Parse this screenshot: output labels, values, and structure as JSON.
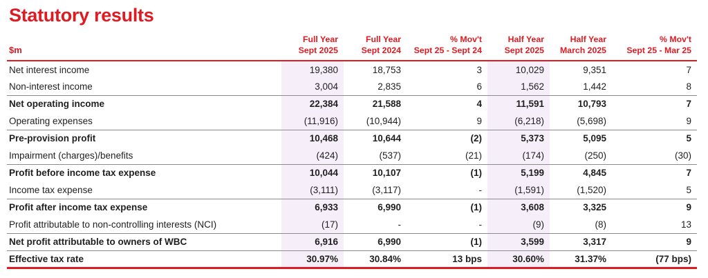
{
  "title": "Statutory results",
  "colors": {
    "accent_red": "#E01A22",
    "highlight_lavender": "#F6EEF8",
    "separator_gray": "#8A8A8A",
    "text": "#1F1F1F"
  },
  "table": {
    "unit_label": "$m",
    "columns": [
      {
        "label": "Full Year\nSept 2025",
        "highlight": true
      },
      {
        "label": "Full Year\nSept 2024",
        "highlight": false
      },
      {
        "label": "% Mov't\nSept 25 - Sept 24",
        "highlight": false
      },
      {
        "label": "Half Year\nSept 2025",
        "highlight": true
      },
      {
        "label": "Half Year\nMarch 2025",
        "highlight": false
      },
      {
        "label": "% Mov't\nSept 25 - Mar 25",
        "highlight": false
      }
    ],
    "rows": [
      {
        "label": "Net interest income",
        "bold": false,
        "values": [
          "19,380",
          "18,753",
          "3",
          "10,029",
          "9,351",
          "7"
        ]
      },
      {
        "label": "Non-interest income",
        "bold": false,
        "values": [
          "3,004",
          "2,835",
          "6",
          "1,562",
          "1,442",
          "8"
        ]
      },
      {
        "label": "Net operating income",
        "bold": true,
        "values": [
          "22,384",
          "21,588",
          "4",
          "11,591",
          "10,793",
          "7"
        ]
      },
      {
        "label": "Operating expenses",
        "bold": false,
        "values": [
          "(11,916)",
          "(10,944)",
          "9",
          "(6,218)",
          "(5,698)",
          "9"
        ]
      },
      {
        "label": "Pre-provision profit",
        "bold": true,
        "values": [
          "10,468",
          "10,644",
          "(2)",
          "5,373",
          "5,095",
          "5"
        ]
      },
      {
        "label": "Impairment (charges)/benefits",
        "bold": false,
        "values": [
          "(424)",
          "(537)",
          "(21)",
          "(174)",
          "(250)",
          "(30)"
        ]
      },
      {
        "label": "Profit before income tax expense",
        "bold": true,
        "values": [
          "10,044",
          "10,107",
          "(1)",
          "5,199",
          "4,845",
          "7"
        ]
      },
      {
        "label": "Income tax expense",
        "bold": false,
        "values": [
          "(3,111)",
          "(3,117)",
          "-",
          "(1,591)",
          "(1,520)",
          "5"
        ]
      },
      {
        "label": "Profit after income tax expense",
        "bold": true,
        "values": [
          "6,933",
          "6,990",
          "(1)",
          "3,608",
          "3,325",
          "9"
        ]
      },
      {
        "label": "Profit attributable to non-controlling interests (NCI)",
        "bold": false,
        "values": [
          "(17)",
          "-",
          "-",
          "(9)",
          "(8)",
          "13"
        ]
      },
      {
        "label": "Net profit attributable to owners of WBC",
        "bold": true,
        "values": [
          "6,916",
          "6,990",
          "(1)",
          "3,599",
          "3,317",
          "9"
        ]
      },
      {
        "label": "Effective tax rate",
        "bold": true,
        "values": [
          "30.97%",
          "30.84%",
          "13 bps",
          "30.60%",
          "31.37%",
          "(77 bps)"
        ]
      }
    ]
  }
}
